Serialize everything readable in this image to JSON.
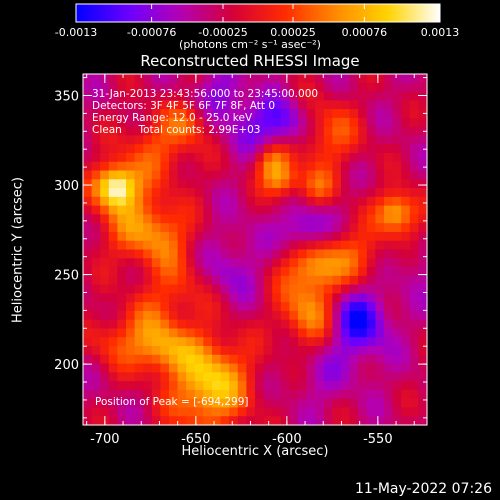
{
  "colorbar": {
    "title": "(photons cm⁻² s⁻¹ asec⁻²)",
    "min": -0.0013,
    "max": 0.0013,
    "tick_values": [
      -0.0013,
      -0.00076,
      -0.00025,
      0.00025,
      0.00076,
      0.0013
    ],
    "tick_labels": [
      "-0.0013",
      "-0.00076",
      "-0.00025",
      "0.00025",
      "0.00076",
      "0.0013"
    ],
    "colors": [
      "#0000ff",
      "#6a00ff",
      "#b400b4",
      "#d4003a",
      "#ff2a00",
      "#ff8a00",
      "#ffd400",
      "#ffffff"
    ]
  },
  "chart_data": {
    "type": "heatmap",
    "title": "Reconstructed RHESSI Image",
    "xlabel": "Heliocentric X (arcsec)",
    "ylabel": "Heliocentric Y (arcsec)",
    "xlim": [
      -712,
      -523
    ],
    "ylim": [
      166,
      362
    ],
    "x_ticks": [
      -700,
      -650,
      -600,
      -550
    ],
    "y_ticks": [
      200,
      250,
      300,
      350
    ],
    "x_tick_labels": [
      "-700",
      "-650",
      "-600",
      "-550"
    ],
    "y_tick_labels": [
      "200",
      "250",
      "300",
      "350"
    ],
    "colorbar_range": [
      -0.0013,
      0.0013
    ],
    "peak_position": [
      -694,
      299
    ],
    "annotations": {
      "time": "31-Jan-2013 23:43:56.000 to 23:45:00.000",
      "detectors": "Detectors: 3F 4F 5F 6F 7F 8F, Att 0",
      "energy": "Energy Range: 12.0 - 25.0 keV",
      "method": "Clean     Total counts: 2.99E+03",
      "peak": "Position of Peak = [-694,299]"
    }
  },
  "footer_timestamp": "11-May-2022 07:26"
}
